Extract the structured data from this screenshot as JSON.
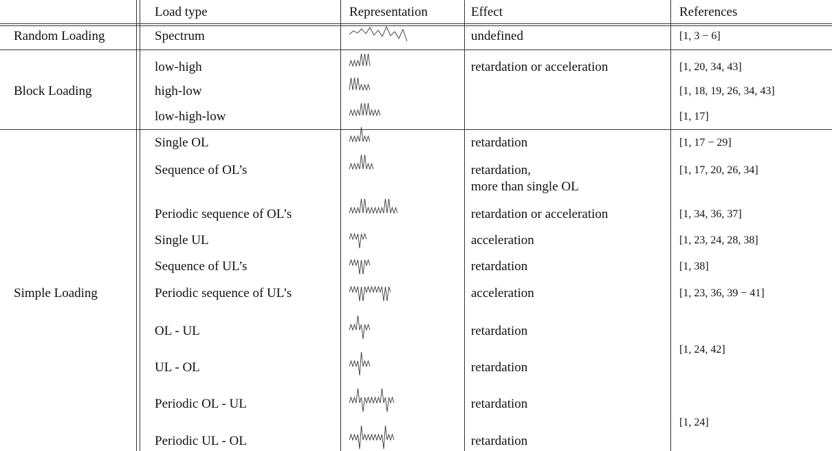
{
  "table": {
    "header": [
      "Load type",
      "Representation",
      "Effect",
      "References"
    ],
    "groups": [
      {
        "name": "Random Loading",
        "rows": [
          {
            "load_type": "Spectrum",
            "effect": "undefined",
            "references": "[1, 3 − 6]"
          }
        ]
      },
      {
        "name": "Block Loading",
        "rows": [
          {
            "load_type": "low-high",
            "effect": "retardation or acceleration",
            "references": "[1, 20, 34, 43]"
          },
          {
            "load_type": "high-low",
            "references": "[1, 18, 19, 26, 34, 43]"
          },
          {
            "load_type": "low-high-low",
            "references": "[1, 17]"
          }
        ]
      },
      {
        "name": "Simple Loading",
        "rows": [
          {
            "load_type": "Single OL",
            "effect": "retardation",
            "references": "[1, 17 − 29]"
          },
          {
            "load_type": "Sequence of OL’s",
            "effect": [
              "retardation,",
              "more than single OL"
            ],
            "references": "[1, 17, 20, 26, 34]"
          },
          {
            "load_type": "Periodic sequence of OL’s",
            "effect": "retardation or acceleration",
            "references": "[1, 34, 36, 37]"
          },
          {
            "load_type": "Single UL",
            "effect": "acceleration",
            "references": "[1, 23, 24, 28, 38]"
          },
          {
            "load_type": "Sequence of UL’s",
            "effect": "retardation",
            "references": "[1, 38]"
          },
          {
            "load_type": "Periodic sequence of UL’s",
            "effect": "acceleration",
            "references": "[1, 23, 36, 39 − 41]"
          },
          {
            "load_type": "OL - UL",
            "effect": "retardation",
            "references": "[1, 24, 42]"
          },
          {
            "load_type": "UL - OL",
            "effect": "retardation"
          },
          {
            "load_type": "Periodic OL - UL",
            "effect": "retardation",
            "references": "[1, 24]"
          },
          {
            "load_type": "Periodic UL - OL",
            "effect": "retardation"
          }
        ]
      }
    ]
  }
}
